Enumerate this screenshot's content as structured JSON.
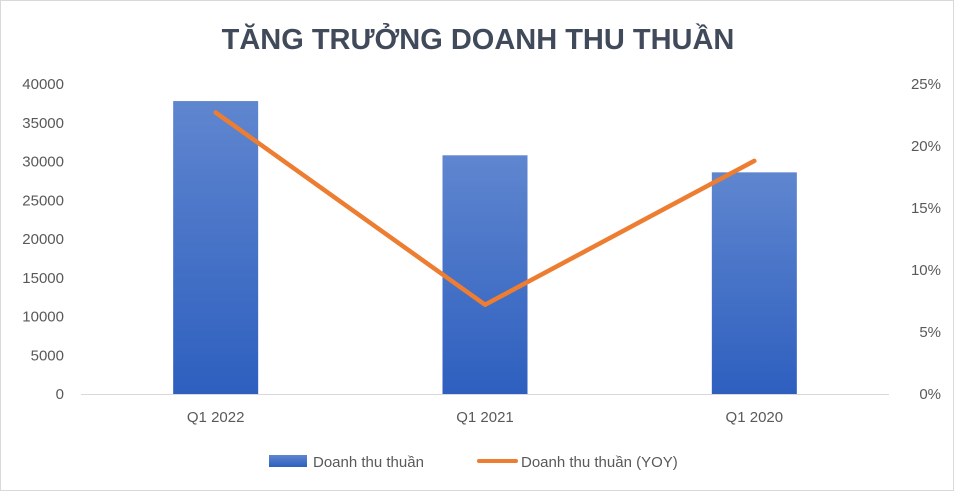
{
  "chart_data": {
    "type": "bar",
    "title": "TĂNG TRƯỞNG DOANH THU THUẦN",
    "categories": [
      "Q1 2022",
      "Q1 2021",
      "Q1 2020"
    ],
    "series": [
      {
        "name": "Doanh thu thuần",
        "type": "bar",
        "axis": "left",
        "values": [
          37800,
          30800,
          28600
        ],
        "color": "#4472c4"
      },
      {
        "name": "Doanh thu thuần (YOY)",
        "type": "line",
        "axis": "right",
        "values": [
          0.227,
          0.072,
          0.188
        ],
        "color": "#ed7d31"
      }
    ],
    "ylim": [
      0,
      40000
    ],
    "yticks": [
      "0",
      "5000",
      "10000",
      "15000",
      "20000",
      "25000",
      "30000",
      "35000",
      "40000"
    ],
    "y2lim": [
      0,
      0.25
    ],
    "y2ticks": [
      "0%",
      "5%",
      "10%",
      "15%",
      "20%",
      "25%"
    ],
    "xlabel": "",
    "ylabel": "",
    "grid": false,
    "legend": "bottom"
  }
}
